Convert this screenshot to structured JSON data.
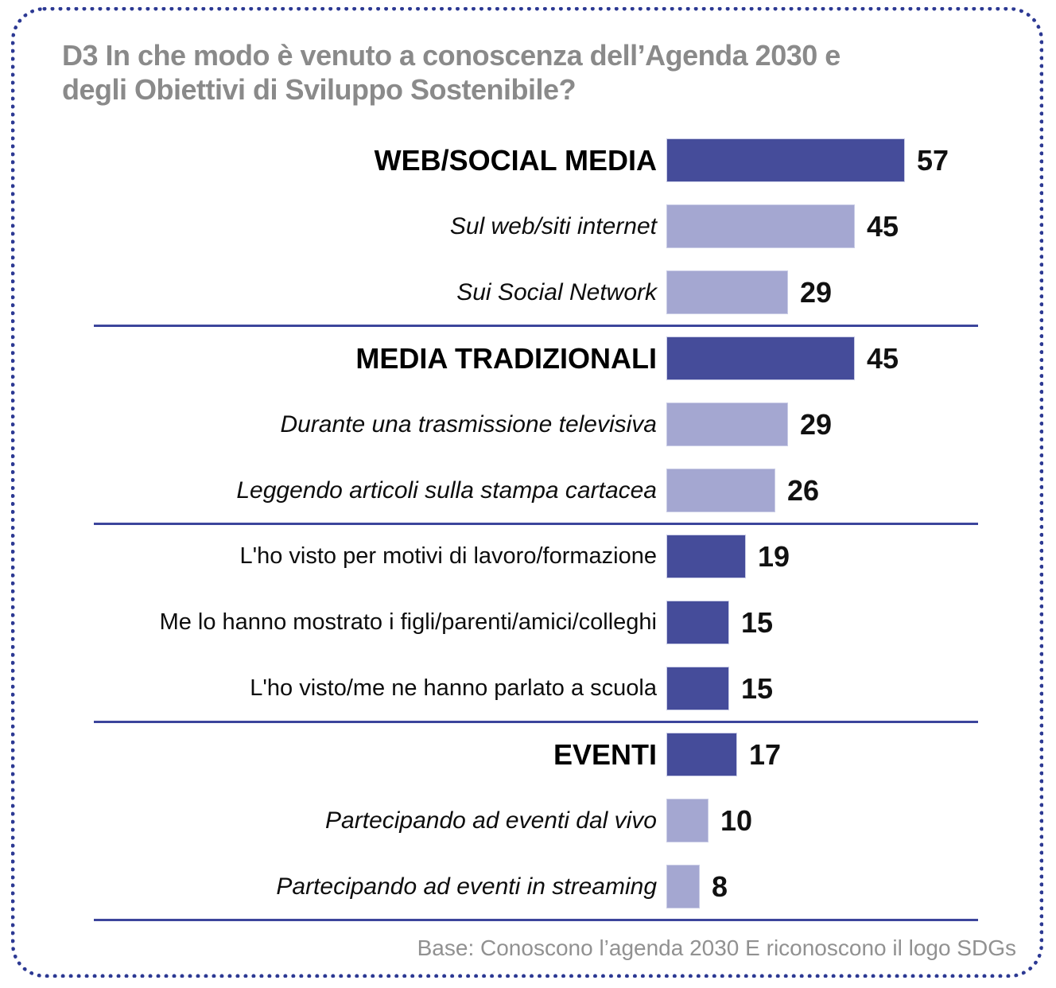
{
  "header": {
    "title_line1": "D3 In che modo è venuto a conoscenza dell’Agenda 2030 e",
    "title_line2": "degli Obiettivi di Sviluppo Sostenibile?"
  },
  "footer": {
    "base_note": "Base: Conoscono l’agenda 2030 E riconoscono il logo SDGs"
  },
  "colors": {
    "group_bar": "#454c9a",
    "item_bar": "#a4a7d1",
    "divider": "#3c459c",
    "dotted_border": "#2c3993",
    "title_text": "#8a8a8a",
    "footer_text": "#919191"
  },
  "chart_data": {
    "type": "bar",
    "orientation": "horizontal",
    "title": "D3 In che modo è venuto a conoscenza dell’Agenda 2030 e degli Obiettivi di Sviluppo Sostenibile?",
    "xlabel": "",
    "ylabel": "",
    "xlim": [
      0,
      60
    ],
    "grid": false,
    "legend": false,
    "value_labels": true,
    "categories": [
      "WEB/SOCIAL MEDIA",
      "Sul web/siti internet",
      "Sui Social Network",
      "MEDIA TRADIZIONALI",
      "Durante una trasmissione televisiva",
      "Leggendo articoli sulla stampa cartacea",
      "L'ho visto per motivi di lavoro/formazione",
      "Me lo hanno mostrato i figli/parenti/amici/colleghi",
      "L'ho visto/me ne hanno parlato a scuola",
      "EVENTI",
      "Partecipando ad eventi dal vivo",
      "Partecipando ad eventi in streaming"
    ],
    "values": [
      57,
      45,
      29,
      45,
      29,
      26,
      19,
      15,
      15,
      17,
      10,
      8
    ],
    "sections": [
      {
        "rows": [
          {
            "label": "WEB/SOCIAL MEDIA",
            "value": 57,
            "style": "header"
          },
          {
            "label": "Sul web/siti internet",
            "value": 45,
            "style": "sub"
          },
          {
            "label": "Sui Social Network",
            "value": 29,
            "style": "sub"
          }
        ]
      },
      {
        "rows": [
          {
            "label": "MEDIA TRADIZIONALI",
            "value": 45,
            "style": "header"
          },
          {
            "label": "Durante una trasmissione televisiva",
            "value": 29,
            "style": "sub"
          },
          {
            "label": "Leggendo articoli sulla stampa cartacea",
            "value": 26,
            "style": "sub"
          }
        ]
      },
      {
        "rows": [
          {
            "label": "L'ho visto per motivi di lavoro/formazione",
            "value": 19,
            "style": "plain"
          },
          {
            "label": "Me lo hanno mostrato i figli/parenti/amici/colleghi",
            "value": 15,
            "style": "plain"
          },
          {
            "label": "L'ho visto/me ne hanno parlato a scuola",
            "value": 15,
            "style": "plain"
          }
        ]
      },
      {
        "rows": [
          {
            "label": "EVENTI",
            "value": 17,
            "style": "header"
          },
          {
            "label": "Partecipando ad eventi dal vivo",
            "value": 10,
            "style": "sub"
          },
          {
            "label": "Partecipando ad eventi in streaming",
            "value": 8,
            "style": "sub"
          }
        ]
      }
    ]
  }
}
